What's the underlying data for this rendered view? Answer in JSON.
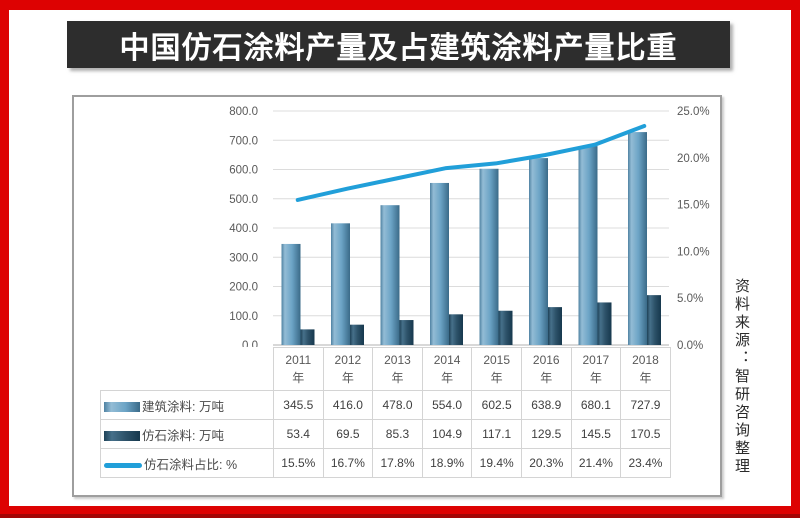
{
  "title": "中国仿石涂料产量及占建筑涂料产量比重",
  "source_note": "资料来源：智研咨询整理",
  "colors": {
    "frame_red": "#dd0202",
    "title_bg": "#2d2d2d",
    "title_text": "#ffffff",
    "bar_building": "#6ca4c6",
    "bar_building_edge": "#3a6a88",
    "bar_stone": "#2d5269",
    "bar_stone_edge": "#16384d",
    "line_ratio": "#219fd9",
    "grid": "#dcdcdc",
    "axis_line": "#b0b0b0",
    "axis_text": "#595959",
    "table_border": "#d4d4d4"
  },
  "chart_data": {
    "type": "combo-bar-line",
    "title": "中国仿石涂料产量及占建筑涂料产量比重",
    "categories": [
      "2011",
      "2012",
      "2013",
      "2014",
      "2015",
      "2016",
      "2017",
      "2018"
    ],
    "category_unit": "年",
    "series": [
      {
        "name": "建筑涂料: 万吨",
        "type": "bar",
        "axis": "left",
        "values": [
          345.5,
          416.0,
          478.0,
          554.0,
          602.5,
          638.9,
          680.1,
          727.9
        ]
      },
      {
        "name": "仿石涂料: 万吨",
        "type": "bar",
        "axis": "left",
        "values": [
          53.4,
          69.5,
          85.3,
          104.9,
          117.1,
          129.5,
          145.5,
          170.5
        ]
      },
      {
        "name": "仿石涂料占比: %",
        "type": "line",
        "axis": "right",
        "values": [
          15.5,
          16.7,
          17.8,
          18.9,
          19.4,
          20.3,
          21.4,
          23.4
        ]
      }
    ],
    "left_axis": {
      "min": 0,
      "max": 800,
      "step": 100,
      "tick_decimals": 1
    },
    "right_axis": {
      "min": 0,
      "max": 25,
      "step": 5,
      "tick_decimals": 1,
      "suffix": "%"
    },
    "grid": true,
    "legend_position": "bottom-table"
  }
}
